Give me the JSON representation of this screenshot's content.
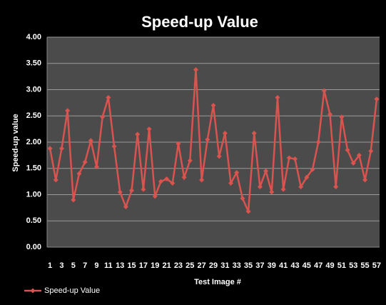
{
  "chart_data": {
    "type": "line",
    "title": "Speed-up Value",
    "y_label": "Speed-up value",
    "x_label": "Test Image #",
    "categories": [
      "1",
      null,
      "3",
      null,
      "5",
      null,
      "7",
      null,
      "9",
      null,
      "11",
      null,
      "13",
      null,
      "15",
      null,
      "17",
      null,
      "19",
      null,
      "21",
      null,
      "23",
      null,
      "25",
      null,
      "27",
      null,
      "29",
      null,
      "31",
      null,
      "33",
      null,
      "35",
      null,
      "37",
      null,
      "39",
      null,
      "41",
      null,
      "43",
      null,
      "45",
      null,
      "47",
      null,
      "49",
      null,
      "51",
      null,
      "53",
      null,
      "55",
      null,
      "57"
    ],
    "series": [
      {
        "name": "Speed-up Value",
        "color": "#d9534f",
        "values": [
          1.88,
          1.28,
          1.88,
          2.6,
          0.9,
          1.4,
          1.62,
          2.03,
          1.53,
          2.48,
          2.85,
          1.92,
          1.05,
          0.77,
          1.08,
          2.15,
          1.1,
          2.25,
          0.97,
          1.25,
          1.3,
          1.22,
          1.97,
          1.33,
          1.65,
          3.38,
          1.28,
          2.05,
          2.7,
          1.73,
          2.17,
          1.22,
          1.42,
          0.93,
          0.68,
          2.17,
          1.15,
          1.45,
          1.05,
          2.85,
          1.1,
          1.7,
          1.68,
          1.15,
          1.33,
          1.48,
          2.0,
          2.98,
          2.53,
          1.15,
          2.48,
          1.85,
          1.6,
          1.75,
          1.28,
          1.83,
          2.82
        ]
      }
    ],
    "ylim": [
      0,
      4
    ],
    "yticks": [
      {
        "value": 0,
        "label": "0.00"
      },
      {
        "value": 0.5,
        "label": "0.50"
      },
      {
        "value": 1,
        "label": "1.00"
      },
      {
        "value": 1.5,
        "label": "1.50"
      },
      {
        "value": 2,
        "label": "2.00"
      },
      {
        "value": 2.5,
        "label": "2.50"
      },
      {
        "value": 3,
        "label": "3.00"
      },
      {
        "value": 3.5,
        "label": "3.50"
      },
      {
        "value": 4,
        "label": "4.00"
      }
    ],
    "grid": true,
    "legend": "bottom-left"
  }
}
